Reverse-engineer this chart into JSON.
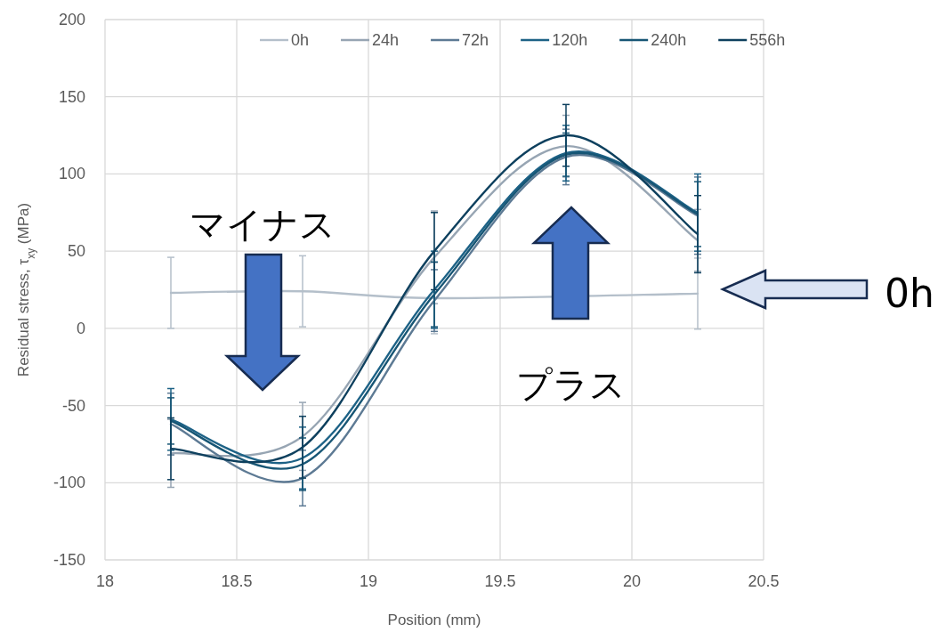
{
  "chart_data": {
    "type": "line",
    "xlabel": "Position (mm)",
    "ylabel": "Residual stress, τ$_{xy}$ (MPa)",
    "x": [
      18.25,
      18.75,
      19.25,
      19.75,
      20.25
    ],
    "xlim": [
      18,
      20.5
    ],
    "xticks": [
      18,
      {
        "value": 18.5,
        "label": "18.5"
      },
      19,
      {
        "value": 19.5,
        "label": "19.5"
      },
      20,
      {
        "value": 20.5,
        "label": "20.5"
      }
    ],
    "ylim": [
      -150,
      200
    ],
    "yticks": [
      -150,
      -100,
      -50,
      0,
      50,
      100,
      150,
      200
    ],
    "grid": true,
    "legend": "top",
    "marker": "none",
    "line_style": "solid",
    "series": [
      {
        "name": "0h",
        "color": "#b4bfca",
        "values": [
          23,
          24,
          19.5,
          null,
          22.5
        ],
        "errors": [
          23,
          23,
          23,
          null,
          23
        ]
      },
      {
        "name": "24h",
        "color": "#97a5b3",
        "values": [
          -81,
          -70,
          46,
          118,
          57
        ],
        "errors": [
          22,
          22,
          30,
          20,
          20
        ]
      },
      {
        "name": "72h",
        "color": "#5d7a94",
        "values": [
          -62,
          -97,
          18,
          111,
          73
        ],
        "errors": [
          20,
          18,
          20,
          18,
          25
        ]
      },
      {
        "name": "120h",
        "color": "#1d6286",
        "values": [
          -59,
          -84,
          25,
          113.5,
          75
        ],
        "errors": [
          20,
          20,
          25,
          18,
          25
        ]
      },
      {
        "name": "240h",
        "color": "#175675",
        "values": [
          -60,
          -88,
          22,
          112.5,
          74
        ],
        "errors": [
          15,
          17,
          21,
          14,
          21
        ]
      },
      {
        "name": "556h",
        "color": "#0e405e",
        "values": [
          -78,
          -77,
          50,
          125,
          61
        ],
        "errors": [
          20,
          20,
          25,
          20,
          25
        ]
      }
    ],
    "annotations": [
      "マイナス",
      "プラス",
      "0h"
    ]
  }
}
